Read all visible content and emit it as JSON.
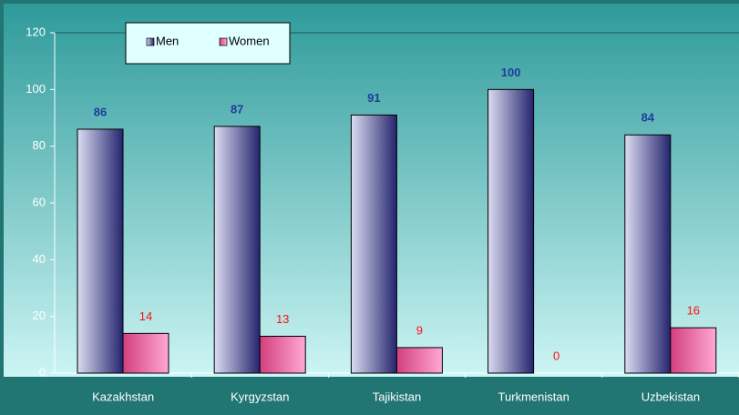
{
  "chart_data": {
    "type": "bar",
    "categories": [
      "Kazakhstan",
      "Kyrgyzstan",
      "Tajikistan",
      "Turkmenistan",
      "Uzbekistan"
    ],
    "series": [
      {
        "name": "Men",
        "color": "#24246e",
        "values": [
          86,
          87,
          91,
          100,
          84
        ]
      },
      {
        "name": "Women",
        "color": "#d2407e",
        "values": [
          14,
          13,
          9,
          0,
          16
        ]
      }
    ],
    "ylim": [
      0,
      120
    ],
    "yticks": [
      0,
      20,
      40,
      60,
      80,
      100,
      120
    ],
    "grid": false,
    "legend": "top-left"
  }
}
